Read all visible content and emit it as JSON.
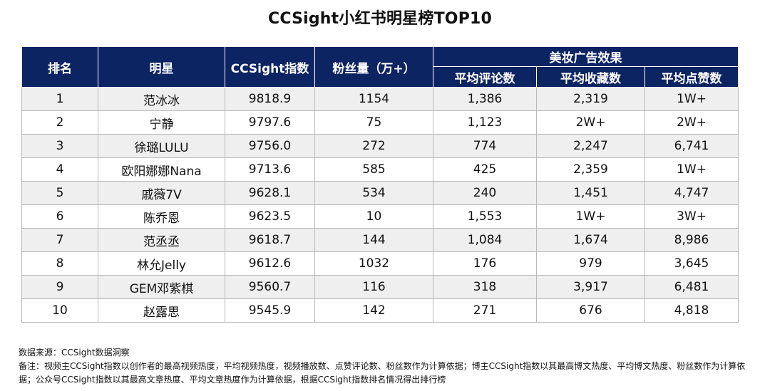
{
  "title": "CCSight小红书明星榜TOP10",
  "chart_data": {
    "type": "table",
    "title": "CCSight小红书明星榜TOP10",
    "header": {
      "rank": "排名",
      "star": "明星",
      "index": "CCSight指数",
      "fans": "粉丝量（万+）",
      "group": "美妆广告效果",
      "avg_comments": "平均评论数",
      "avg_saves": "平均收藏数",
      "avg_likes": "平均点赞数"
    },
    "rows": [
      {
        "rank": "1",
        "star": "范冰冰",
        "index": "9818.9",
        "fans": "1154",
        "avg_comments": "1,386",
        "avg_saves": "2,319",
        "avg_likes": "1W+"
      },
      {
        "rank": "2",
        "star": "宁静",
        "index": "9797.6",
        "fans": "75",
        "avg_comments": "1,123",
        "avg_saves": "2W+",
        "avg_likes": "2W+"
      },
      {
        "rank": "3",
        "star": "徐璐LULU",
        "index": "9756.0",
        "fans": "272",
        "avg_comments": "774",
        "avg_saves": "2,247",
        "avg_likes": "6,741"
      },
      {
        "rank": "4",
        "star": "欧阳娜娜Nana",
        "index": "9713.6",
        "fans": "585",
        "avg_comments": "425",
        "avg_saves": "2,359",
        "avg_likes": "1W+"
      },
      {
        "rank": "5",
        "star": "戚薇7V",
        "index": "9628.1",
        "fans": "534",
        "avg_comments": "240",
        "avg_saves": "1,451",
        "avg_likes": "4,747"
      },
      {
        "rank": "6",
        "star": "陈乔恩",
        "index": "9623.5",
        "fans": "10",
        "avg_comments": "1,553",
        "avg_saves": "1W+",
        "avg_likes": "3W+"
      },
      {
        "rank": "7",
        "star": "范丞丞",
        "index": "9618.7",
        "fans": "144",
        "avg_comments": "1,084",
        "avg_saves": "1,674",
        "avg_likes": "8,986"
      },
      {
        "rank": "8",
        "star": "林允Jelly",
        "index": "9612.6",
        "fans": "1032",
        "avg_comments": "176",
        "avg_saves": "979",
        "avg_likes": "3,645"
      },
      {
        "rank": "9",
        "star": "GEM邓紫棋",
        "index": "9560.7",
        "fans": "116",
        "avg_comments": "318",
        "avg_saves": "3,917",
        "avg_likes": "6,481"
      },
      {
        "rank": "10",
        "star": "赵露思",
        "index": "9545.9",
        "fans": "142",
        "avg_comments": "271",
        "avg_saves": "676",
        "avg_likes": "4,818"
      }
    ]
  },
  "notes": {
    "source": "数据来源：CCSight数据洞察",
    "remark": "备注：视频主CCSight指数以创作者的最高视频热度，平均视频热度，视频播放数、点赞评论数、粉丝数作为计算依据；博主CCSight指数以其最高博文热度、平均博文热度、粉丝数作为计算依据；公众号CCSight指数以其最高文章热度、平均文章热度作为计算依据，根据CCSight指数排名情况得出排行榜"
  },
  "colors": {
    "header_bg": "#0d2463",
    "header_text": "#ffffff",
    "row_alt_bg": "#efefef",
    "grid": "#b9b9b9"
  }
}
